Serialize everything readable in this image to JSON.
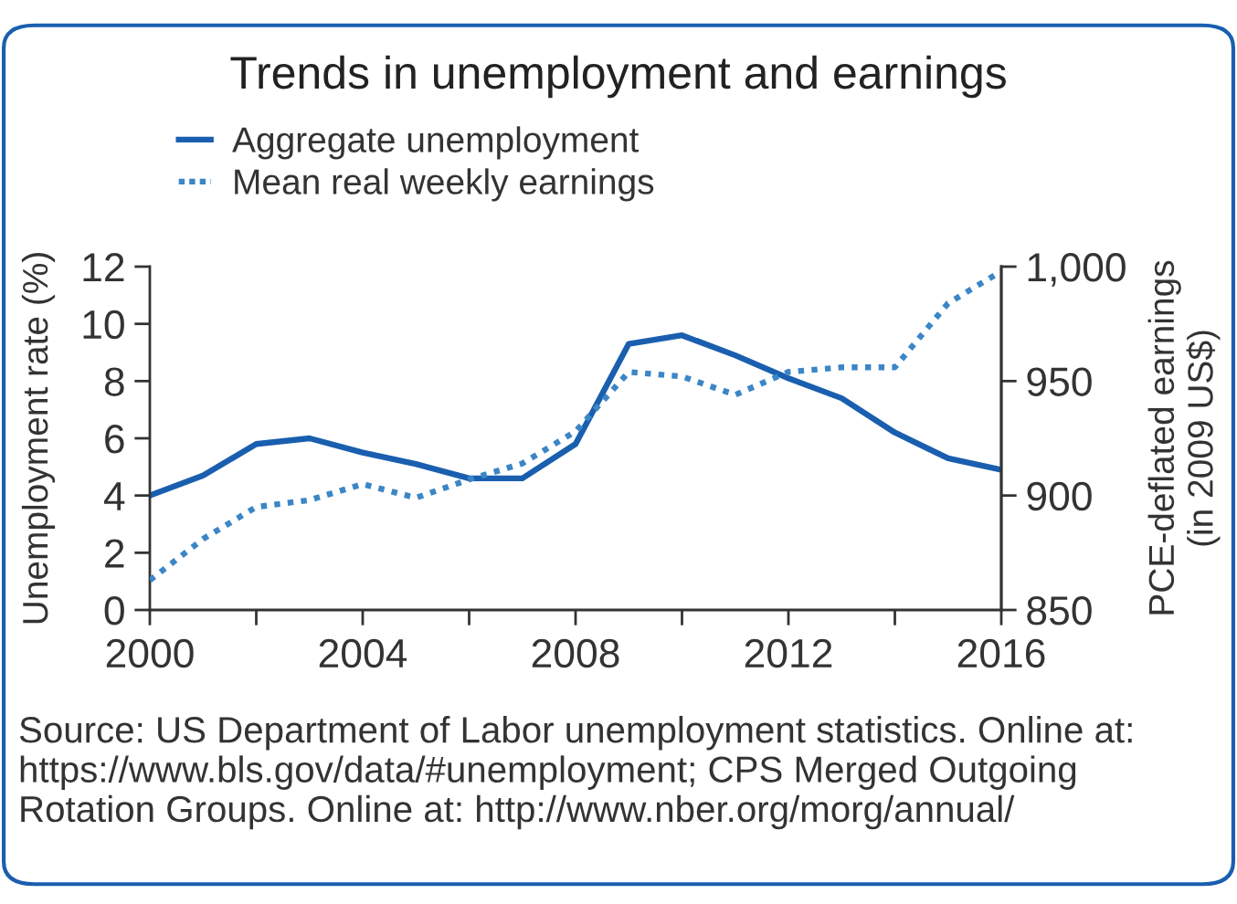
{
  "chart_data": {
    "type": "line",
    "title": "Trends in unemployment and earnings",
    "ylabel": "Unemployment rate (%)",
    "y2label": "PCE-deflated earnings\n(in 2009 US$)",
    "x": [
      2000,
      2001,
      2002,
      2003,
      2004,
      2005,
      2006,
      2007,
      2008,
      2009,
      2010,
      2011,
      2012,
      2013,
      2014,
      2015,
      2016
    ],
    "series": [
      {
        "name": "Aggregate unemployment",
        "color": "#1a5faf",
        "line_style": "solid",
        "values": [
          4.0,
          4.7,
          5.8,
          6.0,
          5.5,
          5.1,
          4.6,
          4.6,
          5.8,
          9.3,
          9.6,
          8.9,
          8.1,
          7.4,
          6.2,
          5.3,
          4.9
        ]
      },
      {
        "name": "Mean real weekly earnings",
        "color": "#3b86c6",
        "line_style": "dotted",
        "axis": "y2",
        "values": [
          863,
          881,
          895,
          898,
          905,
          899,
          907,
          914,
          928,
          954,
          952,
          944,
          954,
          956,
          956,
          984,
          998
        ]
      }
    ],
    "xlim": [
      2000,
      2016
    ],
    "xticks": [
      2000,
      {
        "value": 2002,
        "label": null
      },
      2004,
      {
        "value": 2006,
        "label": null
      },
      2008,
      {
        "value": 2010,
        "label": null
      },
      2012,
      {
        "value": 2014,
        "label": null
      },
      2016
    ],
    "ylim": [
      0,
      12
    ],
    "yticks": [
      0,
      2,
      4,
      6,
      8,
      10,
      12
    ],
    "y2lim": [
      850,
      1000
    ],
    "y2ticks": [
      850,
      900,
      950,
      {
        "value": 1000,
        "label": "1,000"
      }
    ],
    "legend": "top left",
    "annotations": [
      "Source: US Department of Labor unemployment statistics. Online at:\nhttps://www.bls.gov/data/#unemployment; CPS Merged Outgoing\nRotation Groups. Online at: http://www.nber.org/morg/annual/"
    ]
  }
}
